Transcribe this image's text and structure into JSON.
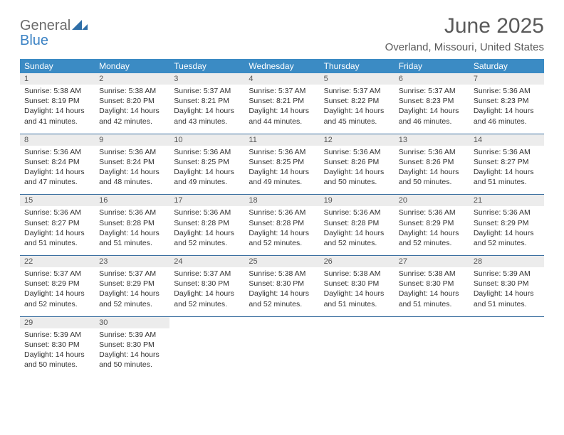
{
  "logo": {
    "part1": "General",
    "part2": "Blue"
  },
  "title": "June 2025",
  "location": "Overland, Missouri, United States",
  "colors": {
    "header_bg": "#3b8bc4",
    "header_text": "#ffffff",
    "daynum_bg": "#ececec",
    "rule": "#3b6fa0",
    "body_text": "#333333",
    "title_text": "#5a5a5a",
    "logo_gray": "#6b6b6b",
    "logo_blue": "#3b82c4"
  },
  "dow": [
    "Sunday",
    "Monday",
    "Tuesday",
    "Wednesday",
    "Thursday",
    "Friday",
    "Saturday"
  ],
  "weeks": [
    [
      {
        "n": "1",
        "sr": "5:38 AM",
        "ss": "8:19 PM",
        "dl": "14 hours and 41 minutes."
      },
      {
        "n": "2",
        "sr": "5:38 AM",
        "ss": "8:20 PM",
        "dl": "14 hours and 42 minutes."
      },
      {
        "n": "3",
        "sr": "5:37 AM",
        "ss": "8:21 PM",
        "dl": "14 hours and 43 minutes."
      },
      {
        "n": "4",
        "sr": "5:37 AM",
        "ss": "8:21 PM",
        "dl": "14 hours and 44 minutes."
      },
      {
        "n": "5",
        "sr": "5:37 AM",
        "ss": "8:22 PM",
        "dl": "14 hours and 45 minutes."
      },
      {
        "n": "6",
        "sr": "5:37 AM",
        "ss": "8:23 PM",
        "dl": "14 hours and 46 minutes."
      },
      {
        "n": "7",
        "sr": "5:36 AM",
        "ss": "8:23 PM",
        "dl": "14 hours and 46 minutes."
      }
    ],
    [
      {
        "n": "8",
        "sr": "5:36 AM",
        "ss": "8:24 PM",
        "dl": "14 hours and 47 minutes."
      },
      {
        "n": "9",
        "sr": "5:36 AM",
        "ss": "8:24 PM",
        "dl": "14 hours and 48 minutes."
      },
      {
        "n": "10",
        "sr": "5:36 AM",
        "ss": "8:25 PM",
        "dl": "14 hours and 49 minutes."
      },
      {
        "n": "11",
        "sr": "5:36 AM",
        "ss": "8:25 PM",
        "dl": "14 hours and 49 minutes."
      },
      {
        "n": "12",
        "sr": "5:36 AM",
        "ss": "8:26 PM",
        "dl": "14 hours and 50 minutes."
      },
      {
        "n": "13",
        "sr": "5:36 AM",
        "ss": "8:26 PM",
        "dl": "14 hours and 50 minutes."
      },
      {
        "n": "14",
        "sr": "5:36 AM",
        "ss": "8:27 PM",
        "dl": "14 hours and 51 minutes."
      }
    ],
    [
      {
        "n": "15",
        "sr": "5:36 AM",
        "ss": "8:27 PM",
        "dl": "14 hours and 51 minutes."
      },
      {
        "n": "16",
        "sr": "5:36 AM",
        "ss": "8:28 PM",
        "dl": "14 hours and 51 minutes."
      },
      {
        "n": "17",
        "sr": "5:36 AM",
        "ss": "8:28 PM",
        "dl": "14 hours and 52 minutes."
      },
      {
        "n": "18",
        "sr": "5:36 AM",
        "ss": "8:28 PM",
        "dl": "14 hours and 52 minutes."
      },
      {
        "n": "19",
        "sr": "5:36 AM",
        "ss": "8:28 PM",
        "dl": "14 hours and 52 minutes."
      },
      {
        "n": "20",
        "sr": "5:36 AM",
        "ss": "8:29 PM",
        "dl": "14 hours and 52 minutes."
      },
      {
        "n": "21",
        "sr": "5:36 AM",
        "ss": "8:29 PM",
        "dl": "14 hours and 52 minutes."
      }
    ],
    [
      {
        "n": "22",
        "sr": "5:37 AM",
        "ss": "8:29 PM",
        "dl": "14 hours and 52 minutes."
      },
      {
        "n": "23",
        "sr": "5:37 AM",
        "ss": "8:29 PM",
        "dl": "14 hours and 52 minutes."
      },
      {
        "n": "24",
        "sr": "5:37 AM",
        "ss": "8:30 PM",
        "dl": "14 hours and 52 minutes."
      },
      {
        "n": "25",
        "sr": "5:38 AM",
        "ss": "8:30 PM",
        "dl": "14 hours and 52 minutes."
      },
      {
        "n": "26",
        "sr": "5:38 AM",
        "ss": "8:30 PM",
        "dl": "14 hours and 51 minutes."
      },
      {
        "n": "27",
        "sr": "5:38 AM",
        "ss": "8:30 PM",
        "dl": "14 hours and 51 minutes."
      },
      {
        "n": "28",
        "sr": "5:39 AM",
        "ss": "8:30 PM",
        "dl": "14 hours and 51 minutes."
      }
    ],
    [
      {
        "n": "29",
        "sr": "5:39 AM",
        "ss": "8:30 PM",
        "dl": "14 hours and 50 minutes."
      },
      {
        "n": "30",
        "sr": "5:39 AM",
        "ss": "8:30 PM",
        "dl": "14 hours and 50 minutes."
      },
      null,
      null,
      null,
      null,
      null
    ]
  ],
  "labels": {
    "sunrise": "Sunrise: ",
    "sunset": "Sunset: ",
    "daylight": "Daylight: "
  }
}
